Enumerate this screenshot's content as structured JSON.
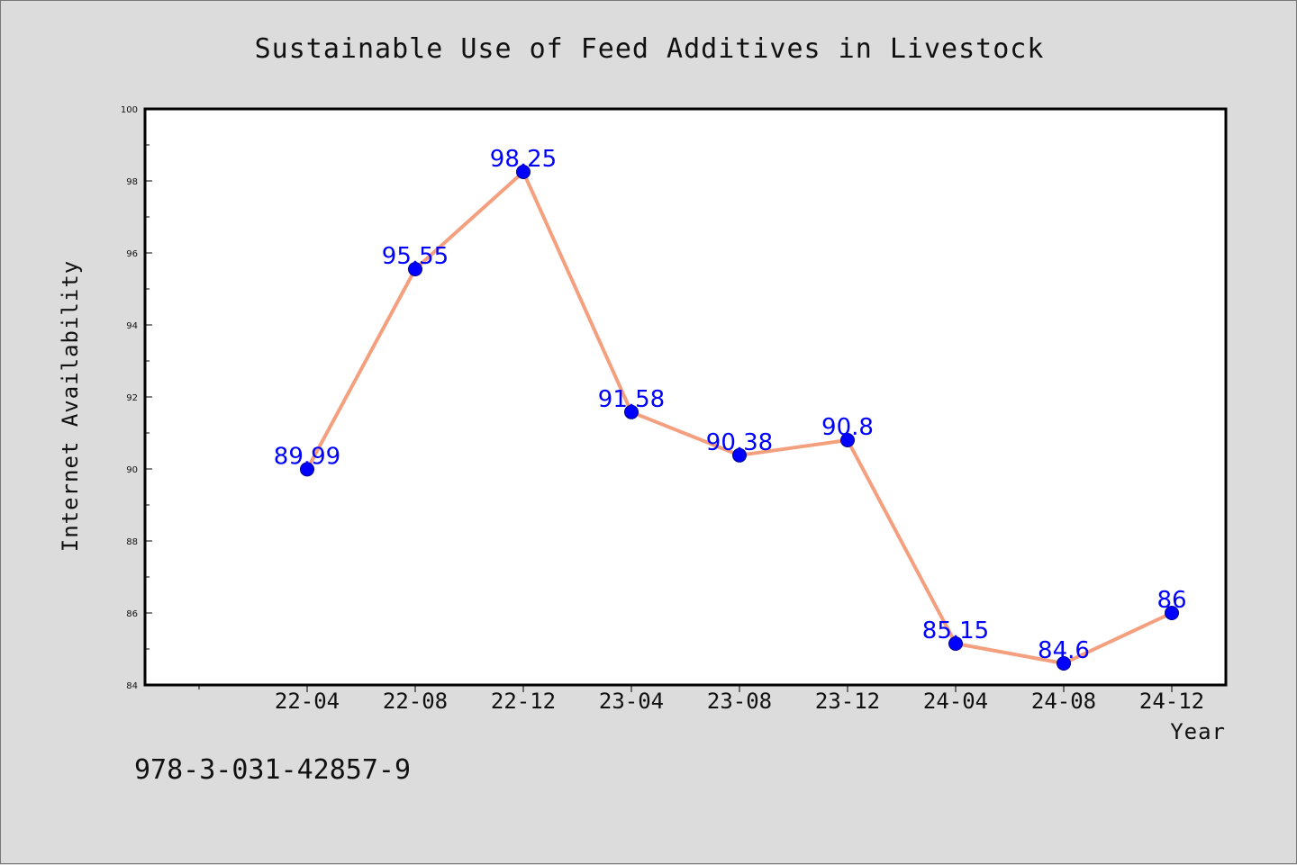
{
  "chart_data": {
    "type": "line",
    "title": "Sustainable Use of Feed Additives in Livestock",
    "xlabel": "Year",
    "ylabel": "Internet Availability",
    "categories": [
      "22-04",
      "22-08",
      "22-12",
      "23-04",
      "23-08",
      "23-12",
      "24-04",
      "24-08",
      "24-12"
    ],
    "values": [
      89.99,
      95.55,
      98.25,
      91.58,
      90.38,
      90.8,
      85.15,
      84.6,
      86
    ],
    "data_labels": [
      "89.99",
      "95.55",
      "98.25",
      "91.58",
      "90.38",
      "90.8",
      "85.15",
      "84.6",
      "86"
    ],
    "ylim": [
      84,
      100
    ],
    "yticks": [
      84,
      86,
      88,
      90,
      92,
      94,
      96,
      98,
      100
    ],
    "y_tick_labels": [
      "84",
      "86",
      "88",
      "90",
      "92",
      "94",
      "96",
      "98",
      "100"
    ],
    "grid": false,
    "legend": "none",
    "colors": {
      "line": "#f4a07f",
      "marker": "#0000ff",
      "data_label": "#0000ff",
      "background": "#dcdcdc",
      "plot_background": "#ffffff"
    }
  },
  "footnote": "978-3-031-42857-9"
}
